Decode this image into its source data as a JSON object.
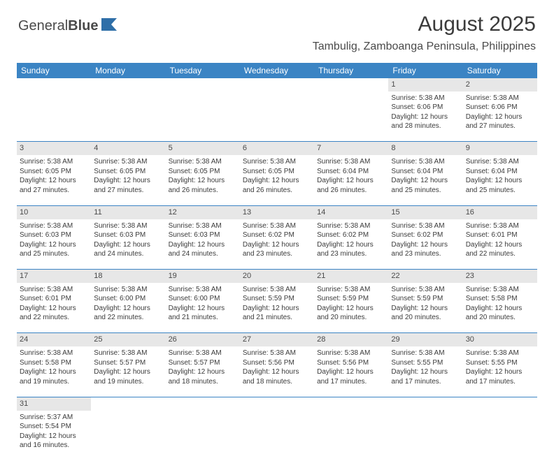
{
  "logo": {
    "part1": "General",
    "part2": "Blue"
  },
  "title": "August 2025",
  "location": "Tambulig, Zamboanga Peninsula, Philippines",
  "colors": {
    "header_bg": "#3b84c4",
    "header_text": "#ffffff",
    "daynum_bg": "#e7e7e7",
    "text": "#3b3b3b",
    "border": "#3b84c4"
  },
  "weekdays": [
    "Sunday",
    "Monday",
    "Tuesday",
    "Wednesday",
    "Thursday",
    "Friday",
    "Saturday"
  ],
  "weeks": [
    {
      "nums": [
        "",
        "",
        "",
        "",
        "",
        "1",
        "2"
      ],
      "cells": [
        null,
        null,
        null,
        null,
        null,
        {
          "sunrise": "5:38 AM",
          "sunset": "6:06 PM",
          "dl": "12 hours and 28 minutes."
        },
        {
          "sunrise": "5:38 AM",
          "sunset": "6:06 PM",
          "dl": "12 hours and 27 minutes."
        }
      ]
    },
    {
      "nums": [
        "3",
        "4",
        "5",
        "6",
        "7",
        "8",
        "9"
      ],
      "cells": [
        {
          "sunrise": "5:38 AM",
          "sunset": "6:05 PM",
          "dl": "12 hours and 27 minutes."
        },
        {
          "sunrise": "5:38 AM",
          "sunset": "6:05 PM",
          "dl": "12 hours and 27 minutes."
        },
        {
          "sunrise": "5:38 AM",
          "sunset": "6:05 PM",
          "dl": "12 hours and 26 minutes."
        },
        {
          "sunrise": "5:38 AM",
          "sunset": "6:05 PM",
          "dl": "12 hours and 26 minutes."
        },
        {
          "sunrise": "5:38 AM",
          "sunset": "6:04 PM",
          "dl": "12 hours and 26 minutes."
        },
        {
          "sunrise": "5:38 AM",
          "sunset": "6:04 PM",
          "dl": "12 hours and 25 minutes."
        },
        {
          "sunrise": "5:38 AM",
          "sunset": "6:04 PM",
          "dl": "12 hours and 25 minutes."
        }
      ]
    },
    {
      "nums": [
        "10",
        "11",
        "12",
        "13",
        "14",
        "15",
        "16"
      ],
      "cells": [
        {
          "sunrise": "5:38 AM",
          "sunset": "6:03 PM",
          "dl": "12 hours and 25 minutes."
        },
        {
          "sunrise": "5:38 AM",
          "sunset": "6:03 PM",
          "dl": "12 hours and 24 minutes."
        },
        {
          "sunrise": "5:38 AM",
          "sunset": "6:03 PM",
          "dl": "12 hours and 24 minutes."
        },
        {
          "sunrise": "5:38 AM",
          "sunset": "6:02 PM",
          "dl": "12 hours and 23 minutes."
        },
        {
          "sunrise": "5:38 AM",
          "sunset": "6:02 PM",
          "dl": "12 hours and 23 minutes."
        },
        {
          "sunrise": "5:38 AM",
          "sunset": "6:02 PM",
          "dl": "12 hours and 23 minutes."
        },
        {
          "sunrise": "5:38 AM",
          "sunset": "6:01 PM",
          "dl": "12 hours and 22 minutes."
        }
      ]
    },
    {
      "nums": [
        "17",
        "18",
        "19",
        "20",
        "21",
        "22",
        "23"
      ],
      "cells": [
        {
          "sunrise": "5:38 AM",
          "sunset": "6:01 PM",
          "dl": "12 hours and 22 minutes."
        },
        {
          "sunrise": "5:38 AM",
          "sunset": "6:00 PM",
          "dl": "12 hours and 22 minutes."
        },
        {
          "sunrise": "5:38 AM",
          "sunset": "6:00 PM",
          "dl": "12 hours and 21 minutes."
        },
        {
          "sunrise": "5:38 AM",
          "sunset": "5:59 PM",
          "dl": "12 hours and 21 minutes."
        },
        {
          "sunrise": "5:38 AM",
          "sunset": "5:59 PM",
          "dl": "12 hours and 20 minutes."
        },
        {
          "sunrise": "5:38 AM",
          "sunset": "5:59 PM",
          "dl": "12 hours and 20 minutes."
        },
        {
          "sunrise": "5:38 AM",
          "sunset": "5:58 PM",
          "dl": "12 hours and 20 minutes."
        }
      ]
    },
    {
      "nums": [
        "24",
        "25",
        "26",
        "27",
        "28",
        "29",
        "30"
      ],
      "cells": [
        {
          "sunrise": "5:38 AM",
          "sunset": "5:58 PM",
          "dl": "12 hours and 19 minutes."
        },
        {
          "sunrise": "5:38 AM",
          "sunset": "5:57 PM",
          "dl": "12 hours and 19 minutes."
        },
        {
          "sunrise": "5:38 AM",
          "sunset": "5:57 PM",
          "dl": "12 hours and 18 minutes."
        },
        {
          "sunrise": "5:38 AM",
          "sunset": "5:56 PM",
          "dl": "12 hours and 18 minutes."
        },
        {
          "sunrise": "5:38 AM",
          "sunset": "5:56 PM",
          "dl": "12 hours and 17 minutes."
        },
        {
          "sunrise": "5:38 AM",
          "sunset": "5:55 PM",
          "dl": "12 hours and 17 minutes."
        },
        {
          "sunrise": "5:38 AM",
          "sunset": "5:55 PM",
          "dl": "12 hours and 17 minutes."
        }
      ]
    },
    {
      "nums": [
        "31",
        "",
        "",
        "",
        "",
        "",
        ""
      ],
      "cells": [
        {
          "sunrise": "5:37 AM",
          "sunset": "5:54 PM",
          "dl": "12 hours and 16 minutes."
        },
        null,
        null,
        null,
        null,
        null,
        null
      ]
    }
  ],
  "labels": {
    "sunrise": "Sunrise: ",
    "sunset": "Sunset: ",
    "daylight": "Daylight: "
  }
}
